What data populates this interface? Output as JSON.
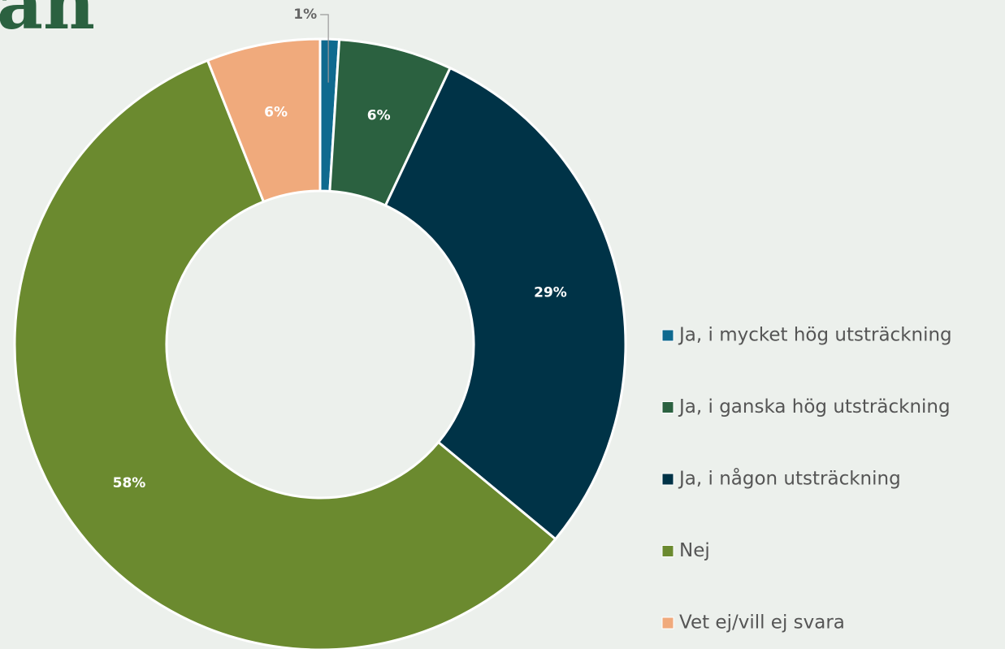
{
  "chart_data": {
    "type": "donut",
    "title": "an",
    "categories": [
      "Ja, i mycket hög utsträckning",
      "Ja, i ganska hög utsträckning",
      "Ja, i någon utsträckning",
      "Nej",
      "Vet ej/vill ej svara"
    ],
    "values": [
      1,
      6,
      29,
      58,
      6
    ],
    "value_labels": [
      "1%",
      "6%",
      "29%",
      "58%",
      "6%"
    ],
    "colors": [
      "#0f6a8f",
      "#2b6140",
      "#003347",
      "#6b8a2f",
      "#f0aa7c"
    ],
    "legend": "right"
  }
}
